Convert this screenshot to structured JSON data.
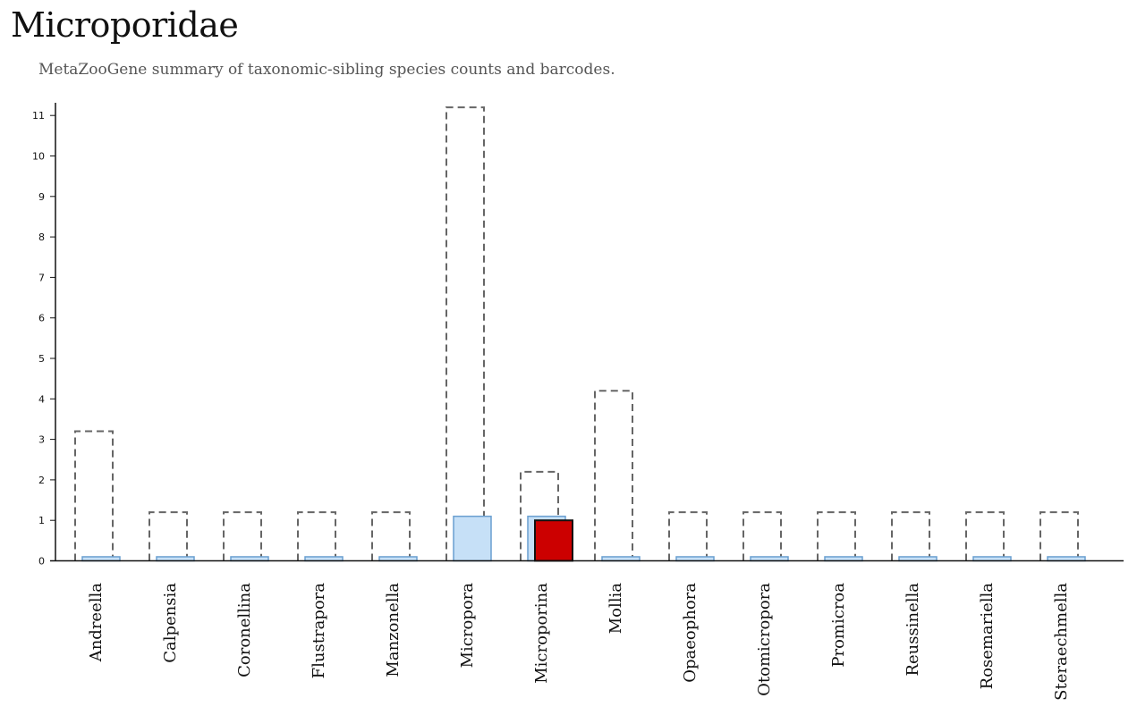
{
  "page": {
    "title": "Microporidae",
    "subtitle": "MetaZooGene summary of taxonomic-sibling species counts and barcodes."
  },
  "colors": {
    "species_outline": "#666666",
    "barcode_fill": "#c6e0f7",
    "barcode_stroke": "#6a9fd0",
    "highlight_fill": "#cc0000",
    "highlight_stroke": "#111111",
    "axis": "#111111"
  },
  "chart_data": {
    "type": "bar",
    "title": "",
    "xlabel": "",
    "ylabel": "",
    "ylim": [
      0,
      11.3
    ],
    "yticks": [
      0,
      1,
      2,
      3,
      4,
      5,
      6,
      7,
      8,
      9,
      10,
      11
    ],
    "grid": false,
    "legend": "none",
    "categories": [
      "Andreella",
      "Calpensia",
      "Coronellina",
      "Flustrapora",
      "Manzonella",
      "Micropora",
      "Microporina",
      "Mollia",
      "Opaeophora",
      "Otomicropora",
      "Promicroa",
      "Reussinella",
      "Rosemariella",
      "Steraechmella"
    ],
    "series": [
      {
        "style": "dashed-outline",
        "values": [
          3.2,
          1.2,
          1.2,
          1.2,
          1.2,
          11.2,
          2.2,
          4.2,
          1.2,
          1.2,
          1.2,
          1.2,
          1.2,
          1.2
        ]
      },
      {
        "style": "light-blue-fill",
        "values": [
          0.1,
          0.1,
          0.1,
          0.1,
          0.1,
          1.1,
          1.1,
          0.1,
          0.1,
          0.1,
          0.1,
          0.1,
          0.1,
          0.1
        ]
      },
      {
        "style": "red-fill",
        "values": [
          null,
          null,
          null,
          null,
          null,
          null,
          1.0,
          null,
          null,
          null,
          null,
          null,
          null,
          null
        ]
      }
    ]
  }
}
